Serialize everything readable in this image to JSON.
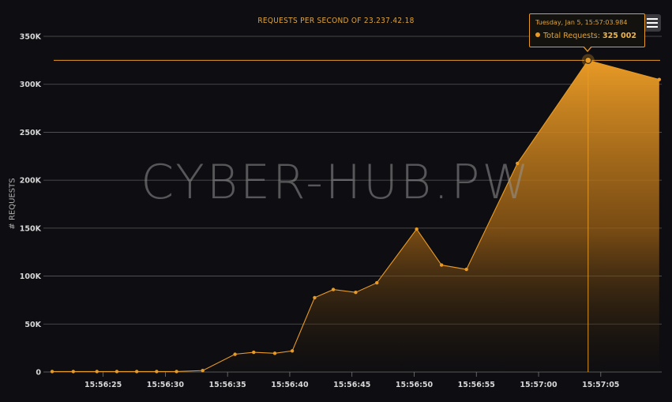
{
  "chart_data": {
    "type": "area",
    "title": "REQUESTS PER SECOND OF 23.237.42.18",
    "ylabel": "# REQUESTS",
    "xlabel": "",
    "ylim": [
      0,
      350000
    ],
    "xlim_seconds": [
      "15:56:20.2",
      "15:57:09.9"
    ],
    "y_ticks": [
      "0",
      "50K",
      "100K",
      "150K",
      "200K",
      "250K",
      "300K",
      "350K"
    ],
    "y_tick_values": [
      0,
      50000,
      100000,
      150000,
      200000,
      250000,
      300000,
      350000
    ],
    "x_ticks": [
      "15:56:25",
      "15:56:30",
      "15:56:35",
      "15:56:40",
      "15:56:45",
      "15:56:50",
      "15:56:55",
      "15:57:00",
      "15:57:05"
    ],
    "grid": true,
    "series": [
      {
        "color": "#e89a26",
        "points": [
          {
            "t": "15:56:20.9",
            "y": 500
          },
          {
            "t": "15:56:22.6",
            "y": 500
          },
          {
            "t": "15:56:24.5",
            "y": 500
          },
          {
            "t": "15:56:26.1",
            "y": 500
          },
          {
            "t": "15:56:27.7",
            "y": 500
          },
          {
            "t": "15:56:29.3",
            "y": 500
          },
          {
            "t": "15:56:30.9",
            "y": 500
          },
          {
            "t": "15:56:33.0",
            "y": 1500
          },
          {
            "t": "15:56:35.6",
            "y": 18500
          },
          {
            "t": "15:56:37.1",
            "y": 20500
          },
          {
            "t": "15:56:38.8",
            "y": 19500
          },
          {
            "t": "15:56:40.2",
            "y": 22000
          },
          {
            "t": "15:56:42.0",
            "y": 77500
          },
          {
            "t": "15:56:43.5",
            "y": 86000
          },
          {
            "t": "15:56:45.3",
            "y": 83000
          },
          {
            "t": "15:56:47.0",
            "y": 93000
          },
          {
            "t": "15:56:50.2",
            "y": 149000
          },
          {
            "t": "15:56:52.2",
            "y": 111500
          },
          {
            "t": "15:56:54.2",
            "y": 107000
          },
          {
            "t": "15:56:58.3",
            "y": 217500
          },
          {
            "t": "15:57:03.984",
            "y": 325002
          },
          {
            "t": "15:57:09.7",
            "y": 305000
          }
        ]
      }
    ],
    "highlighted_index": 20
  },
  "watermark": "CYBER-HUB.PW",
  "tooltip": {
    "date": "Tuesday, Jan 5, 15:57:03.984",
    "label": "Total Requests:",
    "value": "325 002"
  },
  "menu": {
    "icon": "hamburger-menu-icon"
  }
}
